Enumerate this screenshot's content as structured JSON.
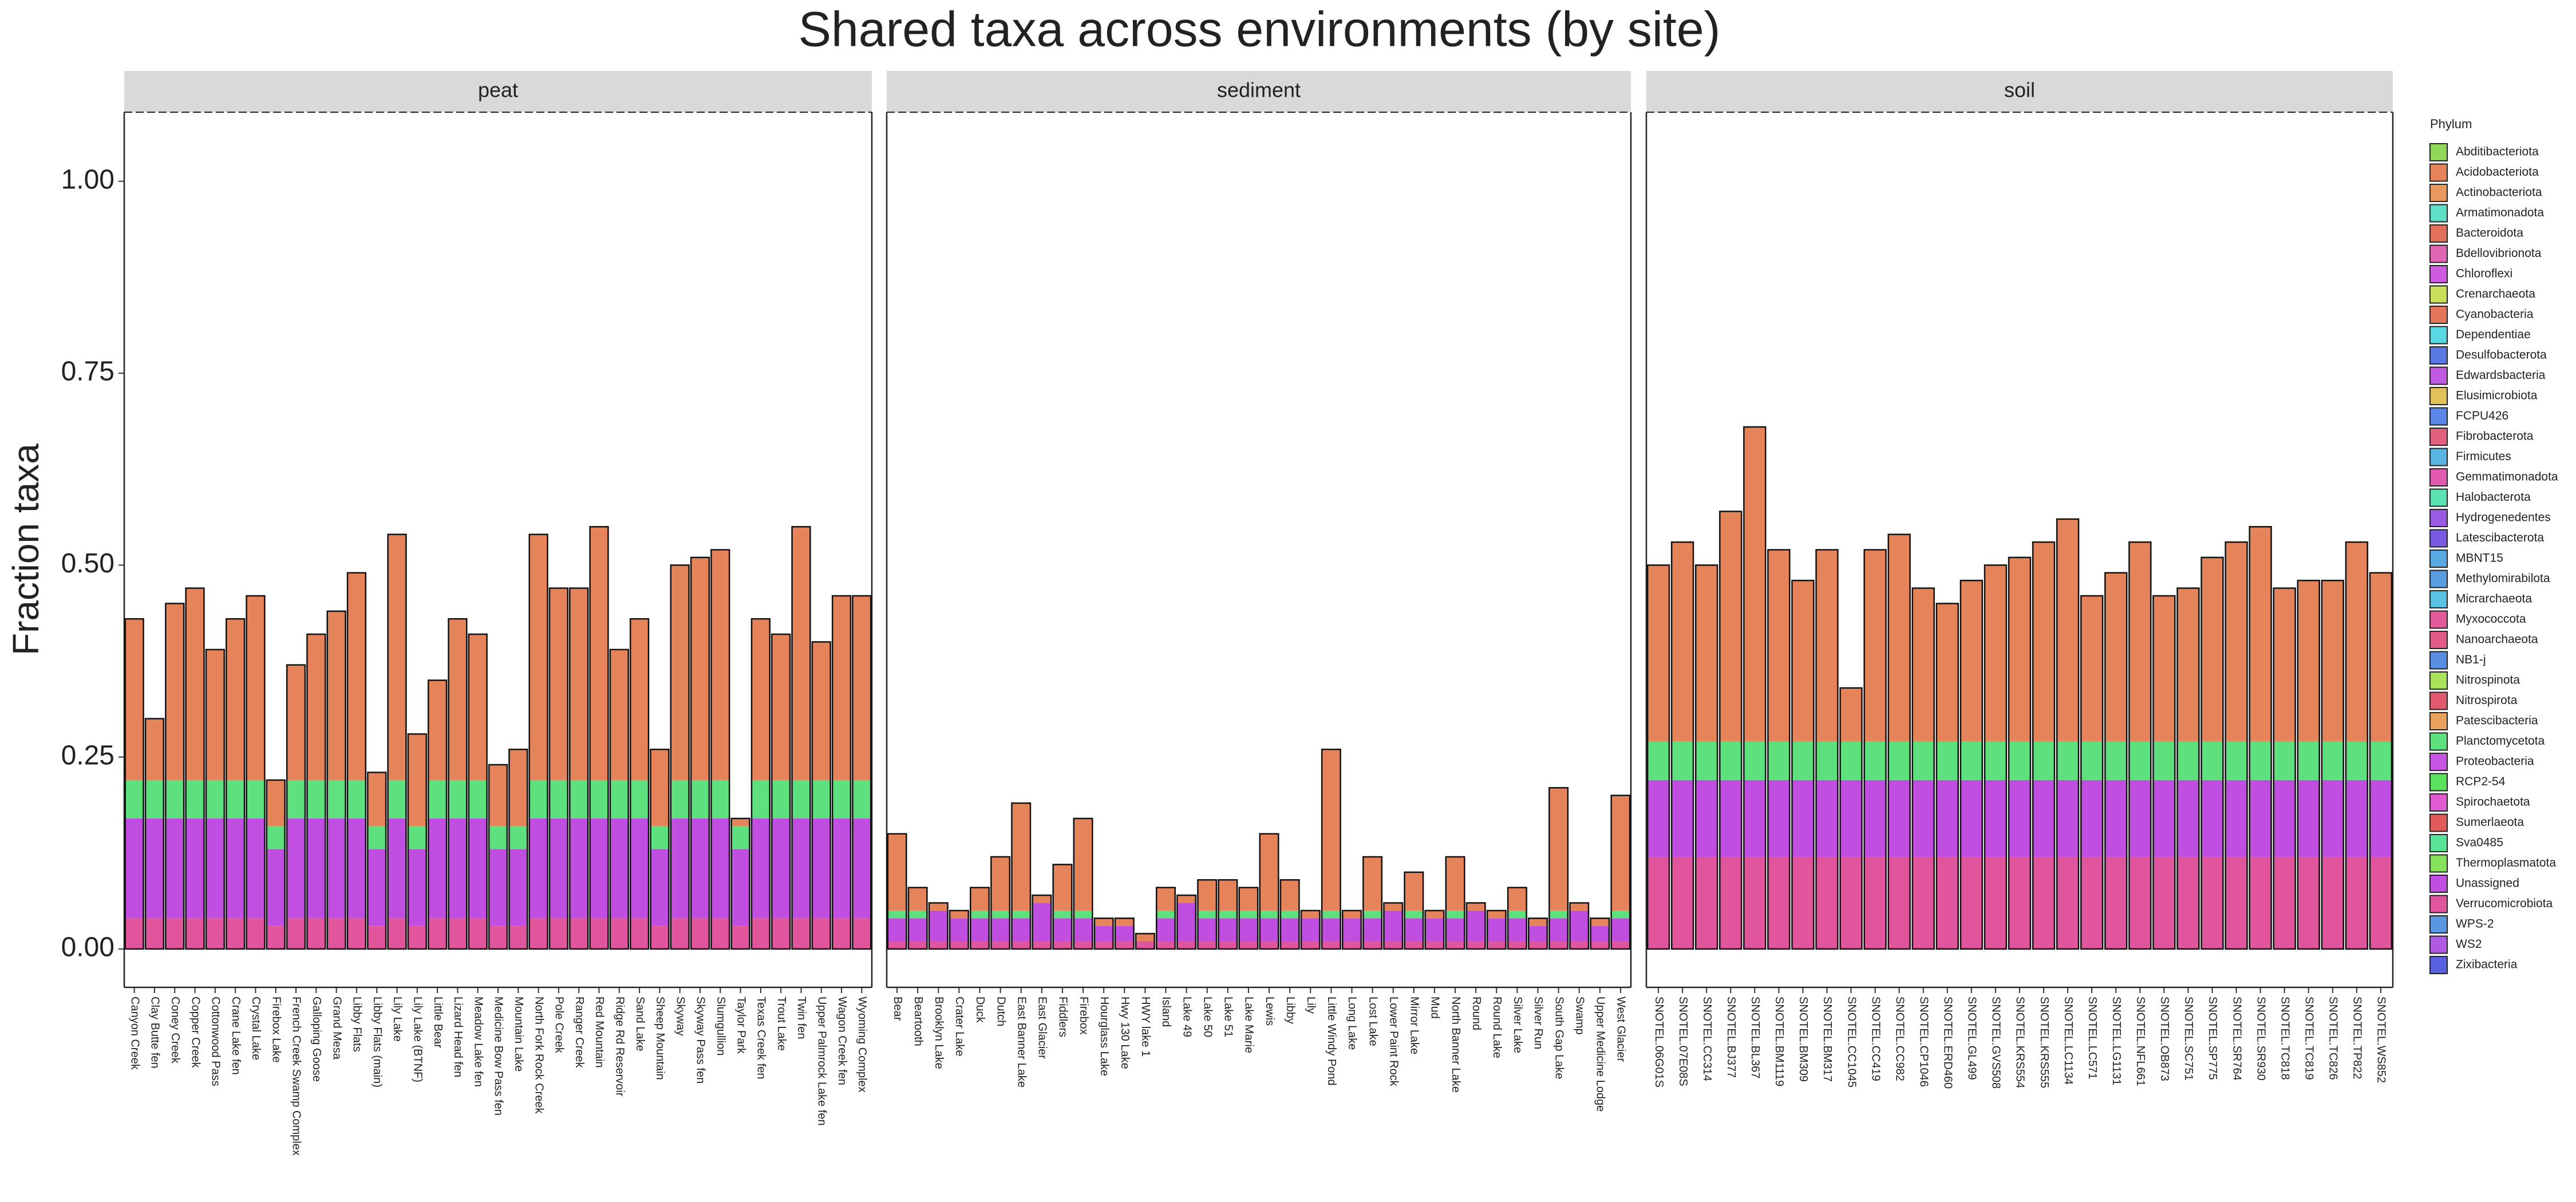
{
  "figure": {
    "title": "Shared taxa across environments (by site)",
    "y_label": "Fraction taxa",
    "ylim": [
      -0.05,
      1.09
    ],
    "yticks": [
      {
        "value": 0,
        "label": "0.00"
      },
      {
        "value": 0.25,
        "label": "0.25"
      },
      {
        "value": 0.5,
        "label": "0.50"
      },
      {
        "value": 0.75,
        "label": "0.75"
      },
      {
        "value": 1,
        "label": "1.00"
      }
    ],
    "legend": {
      "title": "Phylum",
      "items": [
        {
          "name": "Abditibacteriota",
          "color": "#8fd85a"
        },
        {
          "name": "Acidobacteriota",
          "color": "#e5845a"
        },
        {
          "name": "Actinobacteriota",
          "color": "#e89a5e"
        },
        {
          "name": "Armatimonadota",
          "color": "#5ee0c8"
        },
        {
          "name": "Bacteroidota",
          "color": "#e3705a"
        },
        {
          "name": "Bdellovibrionota",
          "color": "#e066b4"
        },
        {
          "name": "Chloroflexi",
          "color": "#cf5ae2"
        },
        {
          "name": "Crenarchaeota",
          "color": "#c9e05a"
        },
        {
          "name": "Cyanobacteria",
          "color": "#e4765c"
        },
        {
          "name": "Dependentiae",
          "color": "#5ad8e2"
        },
        {
          "name": "Desulfobacterota",
          "color": "#5a78e2"
        },
        {
          "name": "Edwardsbacteria",
          "color": "#c05ae2"
        },
        {
          "name": "Elusimicrobiota",
          "color": "#e2c05a"
        },
        {
          "name": "FCPU426",
          "color": "#5a86e8"
        },
        {
          "name": "Fibrobacterota",
          "color": "#e0607e"
        },
        {
          "name": "Firmicutes",
          "color": "#5ab4e2"
        },
        {
          "name": "Gemmatimonadota",
          "color": "#e25ab0"
        },
        {
          "name": "Halobacterota",
          "color": "#5ae2b0"
        },
        {
          "name": "Hydrogenedentes",
          "color": "#9a5ae2"
        },
        {
          "name": "Latescibacterota",
          "color": "#7a5ae2"
        },
        {
          "name": "MBNT15",
          "color": "#5aa8e2"
        },
        {
          "name": "Methylomirabilota",
          "color": "#5a9ee2"
        },
        {
          "name": "Micrarchaeota",
          "color": "#5ac2e2"
        },
        {
          "name": "Myxococcota",
          "color": "#e25a9a"
        },
        {
          "name": "Nanoarchaeota",
          "color": "#e25a86"
        },
        {
          "name": "NB1-j",
          "color": "#5a8ee2"
        },
        {
          "name": "Nitrospinota",
          "color": "#aae25a"
        },
        {
          "name": "Nitrospirota",
          "color": "#e25a6e"
        },
        {
          "name": "Patescibacteria",
          "color": "#e8a25e"
        },
        {
          "name": "Planctomycetota",
          "color": "#5ee07e"
        },
        {
          "name": "Proteobacteria",
          "color": "#c655e2"
        },
        {
          "name": "RCP2-54",
          "color": "#5ae25e"
        },
        {
          "name": "Spirochaetota",
          "color": "#e25ad0"
        },
        {
          "name": "Sumerlaeota",
          "color": "#e25a5a"
        },
        {
          "name": "Sva0485",
          "color": "#5ae296"
        },
        {
          "name": "Thermoplasmatota",
          "color": "#86e25a"
        },
        {
          "name": "Unassigned",
          "color": "#c04ee0"
        },
        {
          "name": "Verrucomicrobiota",
          "color": "#e0559c"
        },
        {
          "name": "WPS-2",
          "color": "#5a96e2"
        },
        {
          "name": "WS2",
          "color": "#b05ae2"
        },
        {
          "name": "Zixibacteria",
          "color": "#5a62e2"
        }
      ]
    }
  },
  "chart_data": [
    {
      "type": "bar",
      "stacked": true,
      "title": "peat",
      "categories": [
        "Canyon Creek",
        "Clay Butte fen",
        "Coney Creek",
        "Copper Creek",
        "Cottonwood Pass",
        "Crane Lake fen",
        "Crystal Lake",
        "Firebox Lake",
        "French Creek Swamp Complex",
        "Galloping Goose",
        "Grand Mesa",
        "Libby Flats",
        "Libby Flats (main)",
        "Lily Lake",
        "Lily Lake (BTNF)",
        "Little Bear",
        "Lizard Head fen",
        "Meadow Lake fen",
        "Medicine Bow Pass fen",
        "Mountain Lake",
        "North Fork Rock Creek",
        "Pole Creek",
        "Ranger Creek",
        "Red Mountain",
        "Ridge Rd Reservoir",
        "Sand Lake",
        "Sheep Mountain",
        "Skyway",
        "Skyway Pass fen",
        "Slumgullion",
        "Taylor Park",
        "Texas Creek fen",
        "Trout Lake",
        "Twin fen",
        "Upper Palmrock Lake fen",
        "Wagon Creek fen",
        "Wyoming Complex"
      ],
      "series": [
        {
          "name": "Verrucomicrobiota",
          "color": "#e0559c",
          "values": [
            0.04,
            0.04,
            0.04,
            0.04,
            0.04,
            0.04,
            0.04,
            0.03,
            0.04,
            0.04,
            0.04,
            0.04,
            0.03,
            0.04,
            0.03,
            0.04,
            0.04,
            0.04,
            0.03,
            0.03,
            0.04,
            0.04,
            0.04,
            0.04,
            0.04,
            0.04,
            0.03,
            0.04,
            0.04,
            0.04,
            0.03,
            0.04,
            0.04,
            0.04,
            0.04,
            0.04,
            0.04
          ]
        },
        {
          "name": "Unassigned",
          "color": "#c04ee0",
          "values": [
            0.13,
            0.13,
            0.13,
            0.13,
            0.13,
            0.13,
            0.13,
            0.1,
            0.13,
            0.13,
            0.13,
            0.13,
            0.1,
            0.13,
            0.1,
            0.13,
            0.13,
            0.13,
            0.1,
            0.1,
            0.13,
            0.13,
            0.13,
            0.13,
            0.13,
            0.13,
            0.1,
            0.13,
            0.13,
            0.13,
            0.1,
            0.13,
            0.13,
            0.13,
            0.13,
            0.13,
            0.13
          ]
        },
        {
          "name": "Planctomycetota",
          "color": "#5ee07e",
          "values": [
            0.05,
            0.05,
            0.05,
            0.05,
            0.05,
            0.05,
            0.05,
            0.03,
            0.05,
            0.05,
            0.05,
            0.05,
            0.03,
            0.05,
            0.03,
            0.05,
            0.05,
            0.05,
            0.03,
            0.03,
            0.05,
            0.05,
            0.05,
            0.05,
            0.05,
            0.05,
            0.03,
            0.05,
            0.05,
            0.05,
            0.03,
            0.05,
            0.05,
            0.05,
            0.05,
            0.05,
            0.05
          ]
        },
        {
          "name": "Acidobacteriota",
          "color": "#e5845a",
          "values": [
            0.21,
            0.08,
            0.23,
            0.25,
            0.17,
            0.21,
            0.24,
            0.06,
            0.15,
            0.19,
            0.22,
            0.27,
            0.07,
            0.32,
            0.12,
            0.13,
            0.21,
            0.19,
            0.08,
            0.1,
            0.32,
            0.25,
            0.25,
            0.33,
            0.17,
            0.21,
            0.1,
            0.28,
            0.29,
            0.3,
            0.01,
            0.21,
            0.19,
            0.33,
            0.18,
            0.24,
            0.24
          ]
        }
      ]
    },
    {
      "type": "bar",
      "stacked": true,
      "title": "sediment",
      "categories": [
        "Bear",
        "Beartooth",
        "Brooklyn Lake",
        "Crater Lake",
        "Duck",
        "Dutch",
        "East Banner Lake",
        "East Glacier",
        "Fiddlers",
        "Firebox",
        "Hourglass Lake",
        "Hwy 130 Lake",
        "HWY lake 1",
        "Island",
        "Lake 49",
        "Lake 50",
        "Lake 51",
        "Lake Marie",
        "Lewis",
        "Libby",
        "Lily",
        "Little Windy Pond",
        "Long Lake",
        "Lost Lake",
        "Lower Paint Rock",
        "Mirror Lake",
        "Mud",
        "North Banner Lake",
        "Round",
        "Round Lake",
        "Silver Lake",
        "Silver Run",
        "South Gap Lake",
        "Swamp",
        "Upper Medicine Lodge",
        "West Glacier"
      ],
      "series": [
        {
          "name": "Verrucomicrobiota",
          "color": "#e0559c",
          "values": [
            0.01,
            0.01,
            0.01,
            0.01,
            0.01,
            0.01,
            0.01,
            0.01,
            0.01,
            0.01,
            0.01,
            0.01,
            0.01,
            0.01,
            0.01,
            0.01,
            0.01,
            0.01,
            0.01,
            0.01,
            0.01,
            0.01,
            0.01,
            0.01,
            0.01,
            0.01,
            0.01,
            0.01,
            0.01,
            0.01,
            0.01,
            0.01,
            0.01,
            0.01,
            0.01,
            0.01
          ]
        },
        {
          "name": "Unassigned",
          "color": "#c04ee0",
          "values": [
            0.03,
            0.03,
            0.04,
            0.03,
            0.03,
            0.03,
            0.03,
            0.05,
            0.03,
            0.03,
            0.02,
            0.02,
            0,
            0.03,
            0.05,
            0.03,
            0.03,
            0.03,
            0.03,
            0.03,
            0.03,
            0.03,
            0.03,
            0.03,
            0.04,
            0.03,
            0.03,
            0.03,
            0.04,
            0.03,
            0.03,
            0.02,
            0.03,
            0.04,
            0.02,
            0.03
          ]
        },
        {
          "name": "Planctomycetota",
          "color": "#5ee07e",
          "values": [
            0.01,
            0.01,
            0,
            0,
            0.01,
            0.01,
            0.01,
            0,
            0.01,
            0.01,
            0,
            0,
            0,
            0.01,
            0,
            0.01,
            0.01,
            0.01,
            0.01,
            0.01,
            0,
            0.01,
            0,
            0.01,
            0,
            0.01,
            0,
            0.01,
            0,
            0,
            0.01,
            0,
            0.01,
            0,
            0,
            0.01
          ]
        },
        {
          "name": "Acidobacteriota",
          "color": "#e5845a",
          "values": [
            0.1,
            0.03,
            0.01,
            0.01,
            0.03,
            0.07,
            0.14,
            0.01,
            0.06,
            0.12,
            0.01,
            0.01,
            0.01,
            0.03,
            0.01,
            0.04,
            0.04,
            0.03,
            0.1,
            0.04,
            0.01,
            0.21,
            0.01,
            0.07,
            0.01,
            0.05,
            0.01,
            0.07,
            0.01,
            0.01,
            0.03,
            0.01,
            0.16,
            0.01,
            0.01,
            0.15
          ]
        }
      ]
    },
    {
      "type": "bar",
      "stacked": true,
      "title": "soil",
      "categories": [
        "SNOTEL.06G01S",
        "SNOTEL.07E08S",
        "SNOTEL.CC314",
        "SNOTEL.BJ377",
        "SNOTEL.BL367",
        "SNOTEL.BM1119",
        "SNOTEL.BM309",
        "SNOTEL.BM317",
        "SNOTEL.CC1045",
        "SNOTEL.CC419",
        "SNOTEL.CC982",
        "SNOTEL.CP1046",
        "SNOTEL.ERD460",
        "SNOTEL.GL499",
        "SNOTEL.GVS508",
        "SNOTEL.KRS554",
        "SNOTEL.KRS555",
        "SNOTEL.LC1134",
        "SNOTEL.LC571",
        "SNOTEL.LG1131",
        "SNOTEL.NFL661",
        "SNOTEL.OB873",
        "SNOTEL.SC751",
        "SNOTEL.SP775",
        "SNOTEL.SR764",
        "SNOTEL.SR930",
        "SNOTEL.TC818",
        "SNOTEL.TC819",
        "SNOTEL.TC826",
        "SNOTEL.TP822",
        "SNOTEL.WS852"
      ],
      "series": [
        {
          "name": "Verrucomicrobiota",
          "color": "#e0559c",
          "values": [
            0.12,
            0.12,
            0.12,
            0.12,
            0.12,
            0.12,
            0.12,
            0.12,
            0.12,
            0.12,
            0.12,
            0.12,
            0.12,
            0.12,
            0.12,
            0.12,
            0.12,
            0.12,
            0.12,
            0.12,
            0.12,
            0.12,
            0.12,
            0.12,
            0.12,
            0.12,
            0.12,
            0.12,
            0.12,
            0.12,
            0.12
          ]
        },
        {
          "name": "Unassigned",
          "color": "#c04ee0",
          "values": [
            0.1,
            0.1,
            0.1,
            0.1,
            0.1,
            0.1,
            0.1,
            0.1,
            0.1,
            0.1,
            0.1,
            0.1,
            0.1,
            0.1,
            0.1,
            0.1,
            0.1,
            0.1,
            0.1,
            0.1,
            0.1,
            0.1,
            0.1,
            0.1,
            0.1,
            0.1,
            0.1,
            0.1,
            0.1,
            0.1,
            0.1
          ]
        },
        {
          "name": "Planctomycetota",
          "color": "#5ee07e",
          "values": [
            0.05,
            0.05,
            0.05,
            0.05,
            0.05,
            0.05,
            0.05,
            0.05,
            0.05,
            0.05,
            0.05,
            0.05,
            0.05,
            0.05,
            0.05,
            0.05,
            0.05,
            0.05,
            0.05,
            0.05,
            0.05,
            0.05,
            0.05,
            0.05,
            0.05,
            0.05,
            0.05,
            0.05,
            0.05,
            0.05,
            0.05
          ]
        },
        {
          "name": "Acidobacteriota",
          "color": "#e5845a",
          "values": [
            0.23,
            0.26,
            0.23,
            0.3,
            0.41,
            0.25,
            0.21,
            0.25,
            0.07,
            0.25,
            0.27,
            0.2,
            0.18,
            0.21,
            0.23,
            0.24,
            0.26,
            0.29,
            0.19,
            0.22,
            0.26,
            0.19,
            0.2,
            0.24,
            0.26,
            0.28,
            0.2,
            0.21,
            0.21,
            0.26,
            0.22
          ]
        }
      ]
    }
  ]
}
